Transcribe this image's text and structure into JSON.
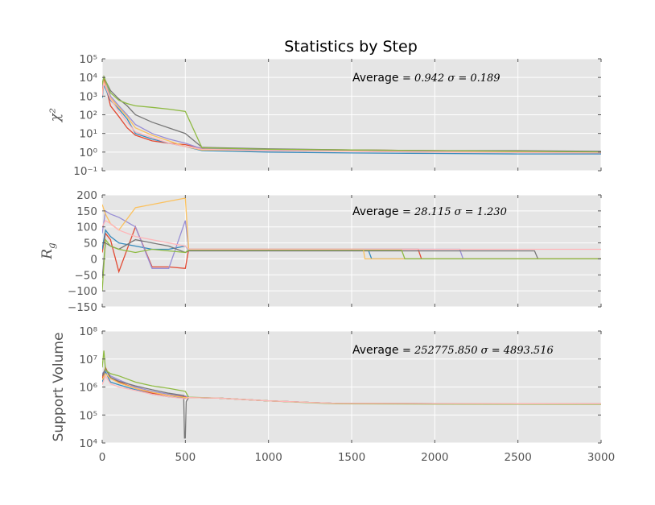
{
  "chart_data": {
    "type": "line",
    "title": "Statistics by Step",
    "xlim": [
      0,
      3000
    ],
    "x_ticks": [
      "0",
      "500",
      "1000",
      "1500",
      "2000",
      "2500",
      "3000"
    ],
    "grid": true,
    "background": "#e5e5e5",
    "colors": [
      "#e24a33",
      "#348abd",
      "#988ed5",
      "#777777",
      "#fbc15e",
      "#8eba42",
      "#ffb5b8"
    ],
    "panels": [
      {
        "key": "chi2",
        "ylabel": "χ²",
        "yscale": "log",
        "ylim": [
          0.1,
          100000
        ],
        "y_ticks": [
          "10⁻¹",
          "10⁰",
          "10¹",
          "10²",
          "10³",
          "10⁴",
          "10⁵"
        ],
        "annotation": {
          "label": "Average",
          "math": "= 0.942   σ = 0.189"
        },
        "series": [
          {
            "x": [
              0,
              10,
              50,
              100,
              150,
              200,
              300,
              400,
              500,
              600,
              1000,
              1500,
              2000,
              2500,
              3000
            ],
            "values": [
              2000,
              9000,
              300,
              80,
              20,
              8,
              4,
              3,
              2.5,
              1.6,
              1.4,
              1.3,
              1.2,
              1.1,
              1.0
            ]
          },
          {
            "x": [
              0,
              10,
              50,
              100,
              150,
              200,
              300,
              400,
              500,
              600,
              1000,
              1500,
              2000,
              2500,
              3000
            ],
            "values": [
              800,
              4000,
              600,
              200,
              60,
              10,
              5,
              3,
              2,
              1.2,
              1.0,
              0.9,
              0.85,
              0.8,
              0.8
            ]
          },
          {
            "x": [
              0,
              10,
              50,
              100,
              150,
              200,
              300,
              400,
              500,
              600,
              1000,
              1500,
              2000,
              2500,
              3000
            ],
            "values": [
              3000,
              12000,
              1000,
              300,
              100,
              30,
              10,
              5,
              3,
              1.5,
              1.3,
              1.2,
              1.1,
              1.1,
              1.0
            ]
          },
          {
            "x": [
              0,
              10,
              50,
              100,
              150,
              200,
              300,
              400,
              500,
              600,
              1000,
              1500,
              2000,
              2500,
              3000
            ],
            "values": [
              5000,
              10000,
              2000,
              700,
              300,
              100,
              40,
              20,
              10,
              1.8,
              1.5,
              1.3,
              1.2,
              1.2,
              1.1
            ]
          },
          {
            "x": [
              0,
              10,
              50,
              100,
              150,
              200,
              300,
              400,
              500,
              600,
              1000,
              1500,
              2000,
              2500,
              3000
            ],
            "values": [
              1500,
              6000,
              800,
              250,
              80,
              20,
              8,
              4,
              2,
              1.3,
              1.2,
              1.1,
              1.0,
              1.0,
              0.95
            ]
          },
          {
            "x": [
              0,
              10,
              50,
              100,
              150,
              200,
              300,
              400,
              500,
              600,
              1000,
              1500,
              2000,
              2500,
              3000
            ],
            "values": [
              4000,
              11000,
              1500,
              600,
              400,
              300,
              250,
              200,
              150,
              1.7,
              1.4,
              1.3,
              1.2,
              1.1,
              1.0
            ]
          },
          {
            "x": [
              0,
              10,
              50,
              100,
              150,
              200,
              300,
              400,
              500,
              600,
              1000,
              1500,
              2000,
              2500,
              3000
            ],
            "values": [
              1000,
              5000,
              700,
              150,
              40,
              12,
              6,
              3,
              2,
              1.4,
              1.2,
              1.1,
              1.0,
              0.95,
              0.9
            ]
          }
        ]
      },
      {
        "key": "rg",
        "ylabel": "R",
        "ylabel_sub": "g",
        "yscale": "linear",
        "ylim": [
          -150,
          200
        ],
        "y_ticks": [
          "−150",
          "−100",
          "−50",
          "0",
          "50",
          "100",
          "150",
          "200"
        ],
        "annotation": {
          "label": "Average",
          "math": "= 28.115   σ = 1.230"
        },
        "series": [
          {
            "x": [
              0,
              20,
              50,
              100,
              200,
              300,
              400,
              500,
              520,
              1900,
              1920,
              3000
            ],
            "values": [
              20,
              80,
              60,
              -40,
              100,
              -25,
              -25,
              -30,
              30,
              30,
              0,
              0
            ]
          },
          {
            "x": [
              0,
              20,
              50,
              100,
              200,
              300,
              400,
              500,
              520,
              1600,
              1620,
              3000
            ],
            "values": [
              30,
              90,
              70,
              50,
              40,
              30,
              30,
              40,
              28,
              28,
              0,
              0
            ]
          },
          {
            "x": [
              0,
              20,
              50,
              100,
              200,
              300,
              400,
              500,
              520,
              2150,
              2170,
              3000
            ],
            "values": [
              80,
              150,
              140,
              130,
              100,
              -30,
              -30,
              120,
              30,
              30,
              0,
              0
            ]
          },
          {
            "x": [
              0,
              20,
              50,
              100,
              200,
              300,
              400,
              500,
              520,
              2600,
              2620,
              3000
            ],
            "values": [
              -60,
              50,
              40,
              30,
              60,
              50,
              40,
              20,
              25,
              25,
              0,
              0
            ]
          },
          {
            "x": [
              0,
              20,
              50,
              100,
              200,
              300,
              400,
              500,
              520,
              1570,
              1580,
              3000
            ],
            "values": [
              170,
              140,
              110,
              90,
              160,
              170,
              180,
              190,
              30,
              30,
              0,
              0
            ]
          },
          {
            "x": [
              0,
              20,
              50,
              100,
              200,
              300,
              400,
              500,
              520,
              1800,
              1820,
              3000
            ],
            "values": [
              -100,
              60,
              40,
              30,
              20,
              30,
              25,
              20,
              28,
              28,
              0,
              0
            ]
          },
          {
            "x": [
              0,
              20,
              50,
              100,
              200,
              300,
              400,
              500,
              520,
              3000
            ],
            "values": [
              100,
              120,
              110,
              90,
              70,
              60,
              50,
              40,
              30,
              30
            ]
          }
        ]
      },
      {
        "key": "support",
        "ylabel": "Support Volume",
        "yscale": "log",
        "ylim": [
          10000,
          100000000
        ],
        "y_ticks": [
          "10⁴",
          "10⁵",
          "10⁶",
          "10⁷",
          "10⁸"
        ],
        "annotation": {
          "label": "Average",
          "math": "= 252775.850   σ = 4893.516"
        },
        "series": [
          {
            "x": [
              0,
              20,
              50,
              100,
              200,
              300,
              400,
              500,
              520,
              700,
              1000,
              1400,
              2000,
              2500,
              3000
            ],
            "values": [
              2000000,
              5000000,
              2000000,
              1500000,
              900000,
              600000,
              500000,
              450000,
              420000,
              400000,
              320000,
              260000,
              255000,
              252000,
              250000
            ]
          },
          {
            "x": [
              0,
              20,
              50,
              100,
              200,
              300,
              400,
              500,
              520,
              700,
              1000,
              1400,
              2000,
              2500,
              3000
            ],
            "values": [
              1500000,
              3500000,
              1500000,
              1200000,
              800000,
              550000,
              450000,
              400000,
              420000,
              400000,
              320000,
              260000,
              255000,
              252000,
              250000
            ]
          },
          {
            "x": [
              0,
              20,
              50,
              100,
              200,
              300,
              400,
              500,
              520,
              700,
              1000,
              1400,
              2000,
              2500,
              3000
            ],
            "values": [
              3000000,
              4000000,
              2500000,
              1800000,
              1000000,
              700000,
              550000,
              480000,
              420000,
              400000,
              320000,
              260000,
              255000,
              252000,
              250000
            ]
          },
          {
            "x": [
              0,
              20,
              50,
              100,
              200,
              300,
              400,
              490,
              495,
              500,
              505,
              520,
              700,
              1000,
              1400,
              3000
            ],
            "values": [
              2500000,
              4500000,
              2200000,
              1600000,
              1100000,
              800000,
              600000,
              500000,
              15000,
              15000,
              300000,
              420000,
              400000,
              320000,
              260000,
              250000
            ]
          },
          {
            "x": [
              0,
              20,
              50,
              100,
              200,
              300,
              400,
              500,
              520,
              700,
              1000,
              1400,
              2000,
              2500,
              3000
            ],
            "values": [
              1800000,
              3000000,
              2000000,
              1400000,
              900000,
              650000,
              500000,
              420000,
              420000,
              400000,
              320000,
              260000,
              255000,
              252000,
              250000
            ]
          },
          {
            "x": [
              0,
              10,
              20,
              50,
              100,
              200,
              300,
              400,
              500,
              520,
              700,
              1000,
              1400,
              2000,
              3000
            ],
            "values": [
              5000000,
              20000000,
              4000000,
              3000000,
              2500000,
              1500000,
              1100000,
              900000,
              700000,
              430000,
              400000,
              320000,
              250000,
              245000,
              240000
            ]
          },
          {
            "x": [
              0,
              20,
              50,
              100,
              200,
              300,
              400,
              500,
              520,
              700,
              1000,
              1400,
              2000,
              2500,
              3000
            ],
            "values": [
              1200000,
              2500000,
              1300000,
              1000000,
              750000,
              550000,
              450000,
              380000,
              420000,
              400000,
              320000,
              260000,
              255000,
              252000,
              250000
            ]
          }
        ]
      }
    ]
  }
}
